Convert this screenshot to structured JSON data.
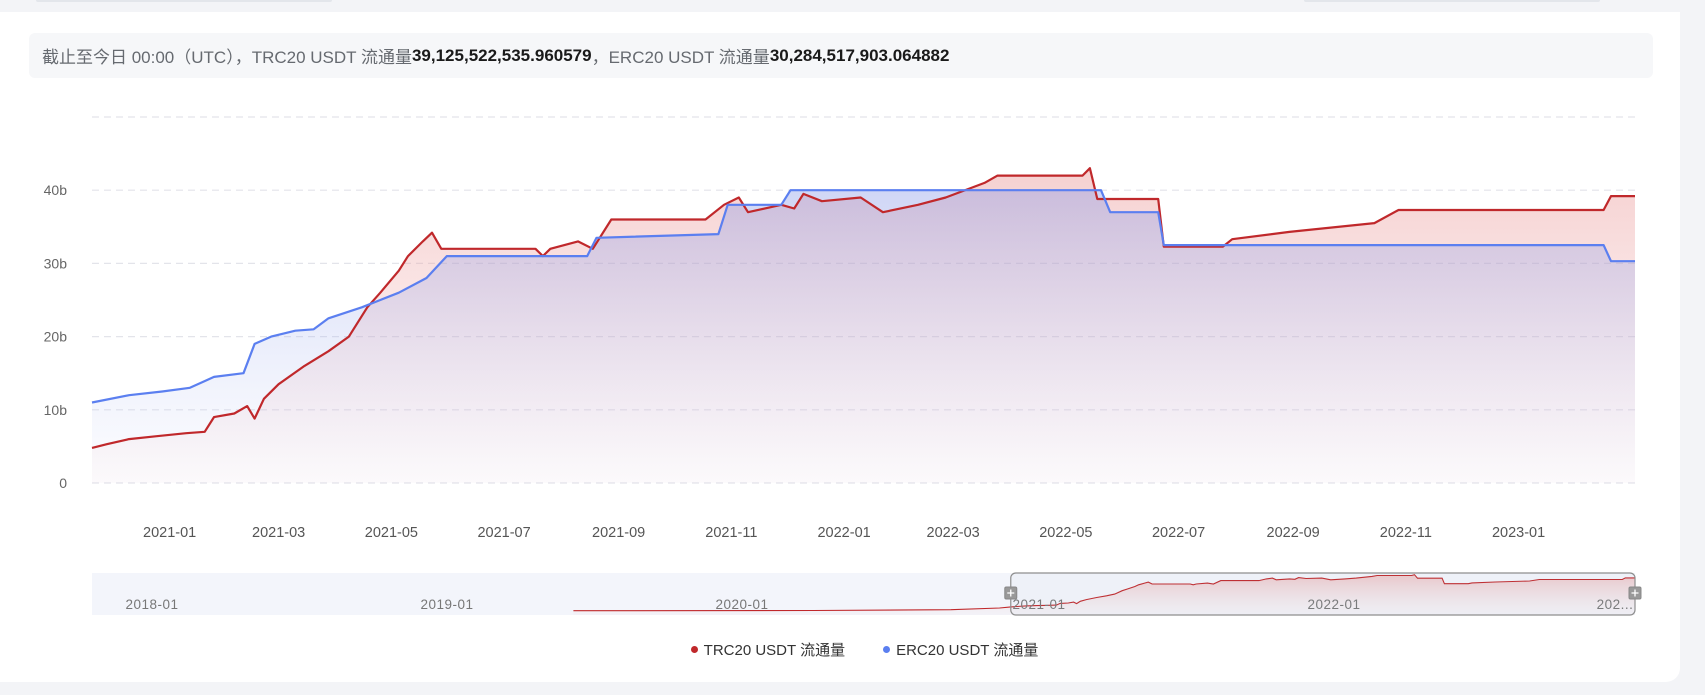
{
  "summary": {
    "prefix": "截止至今日 00:00（UTC），TRC20 USDT 流通量 ",
    "trc20_value": "39,125,522,535.960579",
    "middle": "，ERC20 USDT 流通量 ",
    "erc20_value": "30,284,517,903.064882"
  },
  "colors": {
    "trc20": "#c0282b",
    "erc20": "#5b7ff0"
  },
  "chart_data": {
    "type": "area",
    "title": "",
    "xlabel": "",
    "ylabel": "",
    "y_unit": "b",
    "ylim": [
      0,
      50
    ],
    "y_ticks": [
      0,
      10,
      20,
      30,
      40
    ],
    "y_tick_labels": [
      "0",
      "10b",
      "20b",
      "30b",
      "40b"
    ],
    "x_range": [
      "2020-11-20",
      "2023-03-05"
    ],
    "x_ticks": [
      "2021-01",
      "2021-03",
      "2021-05",
      "2021-07",
      "2021-09",
      "2021-11",
      "2022-01",
      "2022-03",
      "2022-05",
      "2022-07",
      "2022-09",
      "2022-11",
      "2023-01"
    ],
    "grid": true,
    "legend_position": "bottom",
    "series": [
      {
        "name": "TRC20 USDT 流通量",
        "color": "#c0282b",
        "points": [
          [
            "2020-11-20",
            4.8
          ],
          [
            "2020-11-28",
            5.3
          ],
          [
            "2020-12-10",
            6.0
          ],
          [
            "2020-12-25",
            6.4
          ],
          [
            "2021-01-10",
            6.8
          ],
          [
            "2021-01-20",
            7.0
          ],
          [
            "2021-01-25",
            9.0
          ],
          [
            "2021-02-05",
            9.5
          ],
          [
            "2021-02-12",
            10.5
          ],
          [
            "2021-02-16",
            8.8
          ],
          [
            "2021-02-21",
            11.5
          ],
          [
            "2021-03-01",
            13.5
          ],
          [
            "2021-03-15",
            16.0
          ],
          [
            "2021-03-28",
            18.0
          ],
          [
            "2021-04-08",
            20.0
          ],
          [
            "2021-04-18",
            24.0
          ],
          [
            "2021-04-25",
            26.0
          ],
          [
            "2021-05-05",
            29.0
          ],
          [
            "2021-05-10",
            31.0
          ],
          [
            "2021-05-18",
            33.0
          ],
          [
            "2021-05-23",
            34.2
          ],
          [
            "2021-05-28",
            32.0
          ],
          [
            "2021-07-18",
            32.0
          ],
          [
            "2021-07-22",
            31.0
          ],
          [
            "2021-07-26",
            32.0
          ],
          [
            "2021-08-10",
            33.0
          ],
          [
            "2021-08-18",
            32.0
          ],
          [
            "2021-08-28",
            36.0
          ],
          [
            "2021-10-18",
            36.0
          ],
          [
            "2021-10-28",
            38.0
          ],
          [
            "2021-11-05",
            39.0
          ],
          [
            "2021-11-10",
            37.0
          ],
          [
            "2021-11-28",
            38.0
          ],
          [
            "2021-12-05",
            37.5
          ],
          [
            "2021-12-10",
            39.5
          ],
          [
            "2021-12-20",
            38.5
          ],
          [
            "2022-01-10",
            39.0
          ],
          [
            "2022-01-22",
            37.0
          ],
          [
            "2022-02-10",
            38.0
          ],
          [
            "2022-02-25",
            39.0
          ],
          [
            "2022-03-18",
            41.0
          ],
          [
            "2022-03-25",
            42.0
          ],
          [
            "2022-05-10",
            42.0
          ],
          [
            "2022-05-14",
            43.0
          ],
          [
            "2022-05-18",
            38.8
          ],
          [
            "2022-06-20",
            38.8
          ],
          [
            "2022-06-23",
            32.3
          ],
          [
            "2022-07-25",
            32.3
          ],
          [
            "2022-07-30",
            33.3
          ],
          [
            "2022-08-30",
            34.3
          ],
          [
            "2022-10-15",
            35.5
          ],
          [
            "2022-10-28",
            37.3
          ],
          [
            "2023-02-16",
            37.3
          ],
          [
            "2023-02-20",
            39.2
          ],
          [
            "2023-03-05",
            39.2
          ]
        ]
      },
      {
        "name": "ERC20 USDT 流通量",
        "color": "#5b7ff0",
        "points": [
          [
            "2020-11-20",
            11.0
          ],
          [
            "2020-12-10",
            12.0
          ],
          [
            "2020-12-28",
            12.5
          ],
          [
            "2021-01-12",
            13.0
          ],
          [
            "2021-01-25",
            14.5
          ],
          [
            "2021-02-10",
            15.0
          ],
          [
            "2021-02-16",
            19.0
          ],
          [
            "2021-02-25",
            20.0
          ],
          [
            "2021-03-10",
            20.8
          ],
          [
            "2021-03-20",
            21.0
          ],
          [
            "2021-03-28",
            22.5
          ],
          [
            "2021-04-15",
            24.0
          ],
          [
            "2021-04-25",
            25.0
          ],
          [
            "2021-05-05",
            26.0
          ],
          [
            "2021-05-20",
            28.0
          ],
          [
            "2021-05-31",
            31.0
          ],
          [
            "2021-08-15",
            31.0
          ],
          [
            "2021-08-20",
            33.5
          ],
          [
            "2021-10-25",
            34.0
          ],
          [
            "2021-10-30",
            38.0
          ],
          [
            "2021-11-28",
            38.0
          ],
          [
            "2021-12-03",
            40.0
          ],
          [
            "2022-05-20",
            40.0
          ],
          [
            "2022-05-25",
            37.0
          ],
          [
            "2022-06-20",
            37.0
          ],
          [
            "2022-06-23",
            32.5
          ],
          [
            "2022-07-25",
            32.5
          ],
          [
            "2023-02-16",
            32.5
          ],
          [
            "2023-02-20",
            30.3
          ],
          [
            "2023-03-05",
            30.3
          ]
        ]
      }
    ],
    "navigator": {
      "x_ticks": [
        "2018-01",
        "2019-01",
        "2020-01",
        "2021-01",
        "2022-01",
        "202..."
      ]
    }
  }
}
